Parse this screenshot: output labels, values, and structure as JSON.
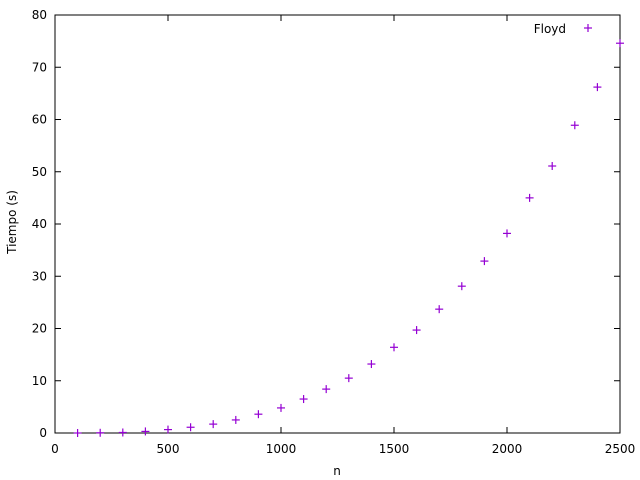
{
  "chart_data": {
    "type": "scatter",
    "xlabel": "n",
    "ylabel": "Tiempo (s)",
    "xlim": [
      0,
      2500
    ],
    "ylim": [
      0,
      80
    ],
    "xticks": [
      0,
      500,
      1000,
      1500,
      2000,
      2500
    ],
    "yticks": [
      0,
      10,
      20,
      30,
      40,
      50,
      60,
      70,
      80
    ],
    "grid": false,
    "legend_position": "top-right",
    "marker": "plus",
    "series": [
      {
        "name": "Floyd",
        "color": "#9400d3",
        "x": [
          100,
          200,
          300,
          400,
          500,
          600,
          700,
          800,
          900,
          1000,
          1100,
          1200,
          1300,
          1400,
          1500,
          1600,
          1700,
          1800,
          1900,
          2000,
          2100,
          2200,
          2300,
          2400,
          2500
        ],
        "y": [
          0.0,
          0.04,
          0.1,
          0.3,
          0.65,
          1.1,
          1.7,
          2.5,
          3.6,
          4.8,
          6.5,
          8.4,
          10.5,
          13.2,
          16.4,
          19.7,
          23.7,
          28.1,
          32.9,
          38.2,
          45.0,
          51.1,
          58.9,
          66.2,
          74.6
        ]
      }
    ]
  }
}
